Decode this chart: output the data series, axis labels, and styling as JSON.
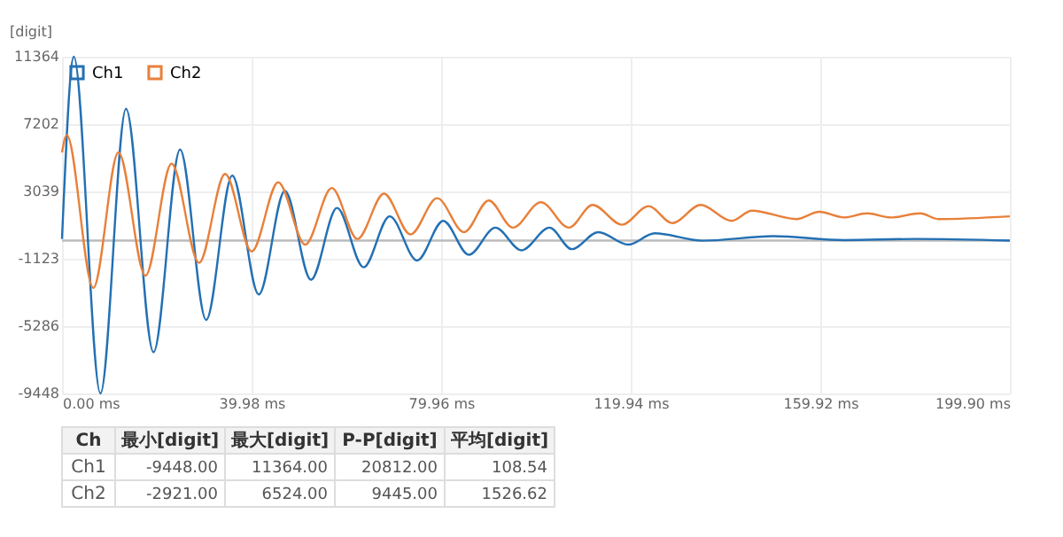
{
  "chart_data": {
    "type": "line",
    "ylabel": "[digit]",
    "xlim": [
      0,
      199.9
    ],
    "ylim": [
      -9448,
      11364
    ],
    "xticks": [
      {
        "value": 0,
        "label": "0.00 ms"
      },
      {
        "value": 39.98,
        "label": "39.98 ms"
      },
      {
        "value": 79.96,
        "label": "79.96 ms"
      },
      {
        "value": 119.94,
        "label": "119.94 ms"
      },
      {
        "value": 159.92,
        "label": "159.92 ms"
      },
      {
        "value": 199.9,
        "label": "199.90 ms"
      }
    ],
    "yticks": [
      -9448,
      -5286,
      -1123,
      3039,
      7202,
      11364
    ],
    "grid": true,
    "legend": "top left",
    "marker": "none",
    "line_style": "solid",
    "ref_lines": [
      {
        "axis": "y",
        "value": 0,
        "color": "#bbbbbb"
      }
    ],
    "series": [
      {
        "name": "Ch1",
        "color": "#2370b3",
        "x": [
          0,
          2.5,
          8.1,
          13.5,
          19.3,
          24.9,
          30.4,
          35.9,
          41.5,
          47,
          52.5,
          58,
          63.6,
          69.1,
          74.9,
          80.4,
          85.8,
          91.4,
          96.9,
          102.8,
          107.5,
          113.1,
          119.4,
          125,
          135,
          150,
          165,
          180,
          199.9
        ],
        "values": [
          100,
          11364,
          -9448,
          8150,
          -6900,
          5630,
          -4900,
          4020,
          -3330,
          3070,
          -2420,
          2020,
          -1650,
          1500,
          -1230,
          1220,
          -880,
          800,
          -600,
          800,
          -530,
          520,
          -250,
          450,
          -5,
          270,
          30,
          100,
          0
        ]
      },
      {
        "name": "Ch2",
        "color": "#e8803a",
        "x": [
          0,
          1,
          6.6,
          11.9,
          17.6,
          23.1,
          28.9,
          34.4,
          40,
          45.6,
          51.3,
          56.9,
          62.3,
          67.9,
          73.5,
          79.1,
          84.8,
          90,
          95.1,
          101,
          106.9,
          111.9,
          118.1,
          123.7,
          128.7,
          134.7,
          141.2,
          145.5,
          154.9,
          159.7,
          164.9,
          169.8,
          174.8,
          181,
          184.8,
          199.9
        ],
        "values": [
          5450,
          6524,
          -2921,
          5450,
          -2170,
          4750,
          -1370,
          4120,
          -670,
          3600,
          -250,
          3250,
          100,
          2900,
          380,
          2620,
          520,
          2480,
          800,
          2370,
          800,
          2200,
          980,
          2130,
          1080,
          2200,
          1220,
          1850,
          1330,
          1780,
          1430,
          1680,
          1430,
          1680,
          1330,
          1500
        ]
      }
    ],
    "annotations": [
      "Ch",
      "最小[digit]",
      "最大[digit]",
      "P-P[digit]",
      "平均[digit]",
      "Ch1",
      "-9448.00",
      "11364.00",
      "20812.00",
      "108.54",
      "Ch2",
      "-2921.00",
      "6524.00",
      "9445.00",
      "1526.62"
    ]
  }
}
